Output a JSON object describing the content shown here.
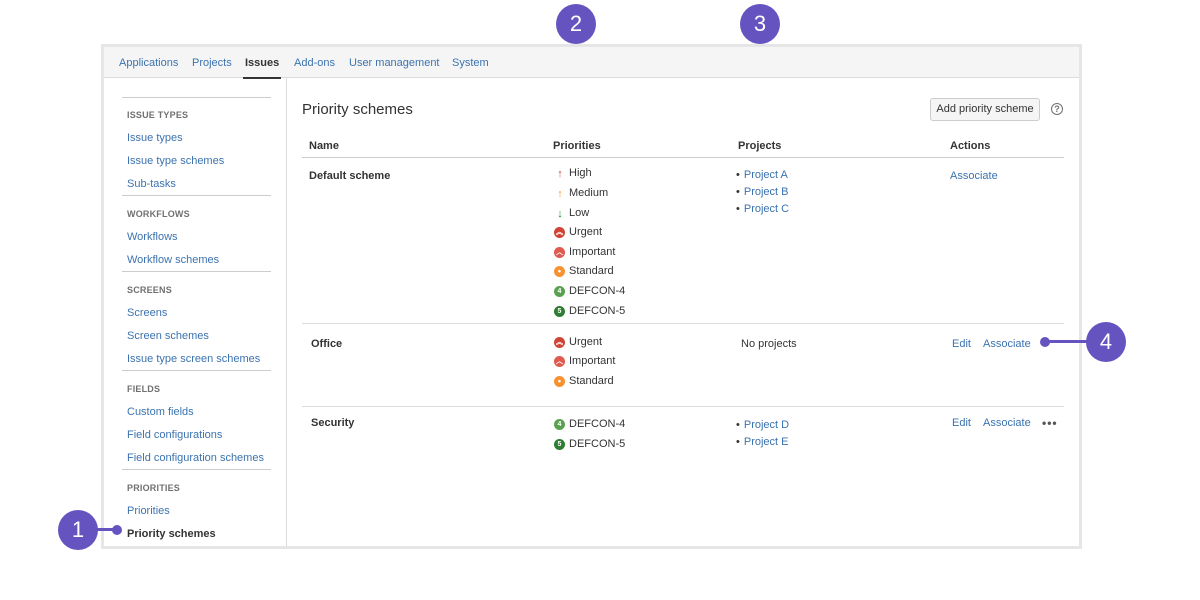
{
  "topnav": {
    "tabs": [
      {
        "label": "Applications"
      },
      {
        "label": "Projects"
      },
      {
        "label": "Issues"
      },
      {
        "label": "Add-ons"
      },
      {
        "label": "User management"
      },
      {
        "label": "System"
      }
    ],
    "active": "Issues"
  },
  "sidebar": {
    "sections": [
      {
        "title": "ISSUE TYPES",
        "items": [
          "Issue types",
          "Issue type schemes",
          "Sub-tasks"
        ]
      },
      {
        "title": "WORKFLOWS",
        "items": [
          "Workflows",
          "Workflow schemes"
        ]
      },
      {
        "title": "SCREENS",
        "items": [
          "Screens",
          "Screen schemes",
          "Issue type screen schemes"
        ]
      },
      {
        "title": "FIELDS",
        "items": [
          "Custom fields",
          "Field configurations",
          "Field configuration schemes"
        ]
      },
      {
        "title": "PRIORITIES",
        "items": [
          "Priorities",
          "Priority schemes"
        ]
      }
    ],
    "selected": "Priority schemes"
  },
  "main": {
    "title": "Priority schemes",
    "add_button": "Add priority scheme",
    "help_icon": "question-circle-icon",
    "columns": {
      "name": "Name",
      "priorities": "Priorities",
      "projects": "Projects",
      "actions": "Actions"
    },
    "rows": [
      {
        "name": "Default scheme",
        "priorities": [
          "High",
          "Medium",
          "Low",
          "Urgent",
          "Important",
          "Standard",
          "DEFCON-4",
          "DEFCON-5"
        ],
        "projects": [
          "Project A",
          "Project B",
          "Project C"
        ],
        "actions": [
          "Associate"
        ]
      },
      {
        "name": "Office",
        "priorities": [
          "Urgent",
          "Important",
          "Standard"
        ],
        "no_projects": "No projects",
        "actions": [
          "Edit",
          "Associate"
        ]
      },
      {
        "name": "Security",
        "priorities": [
          "DEFCON-4",
          "DEFCON-5"
        ],
        "projects": [
          "Project D",
          "Project E"
        ],
        "actions": [
          "Edit",
          "Associate"
        ],
        "more_icon": "more-options-icon"
      }
    ]
  },
  "priority_icons": {
    "High": {
      "icon": "arrow-up-icon",
      "color": "#d04437"
    },
    "Medium": {
      "icon": "arrow-up-icon",
      "color": "#f79232"
    },
    "Low": {
      "icon": "arrow-down-icon",
      "color": "#14892c"
    },
    "Urgent": {
      "icon": "double-chevron-up-icon",
      "color": "#d04437"
    },
    "Important": {
      "icon": "chevron-up-icon",
      "color": "#e05a4f"
    },
    "Standard": {
      "icon": "dot-icon",
      "color": "#f79232"
    },
    "DEFCON-4": {
      "icon": "number-4-icon",
      "glyph": "4",
      "color": "#59a14f"
    },
    "DEFCON-5": {
      "icon": "number-5-icon",
      "glyph": "5",
      "color": "#2e7d32"
    }
  },
  "callouts": [
    "1",
    "2",
    "3",
    "4"
  ],
  "colors": {
    "link": "#3b73af",
    "callout": "#6554c0"
  }
}
